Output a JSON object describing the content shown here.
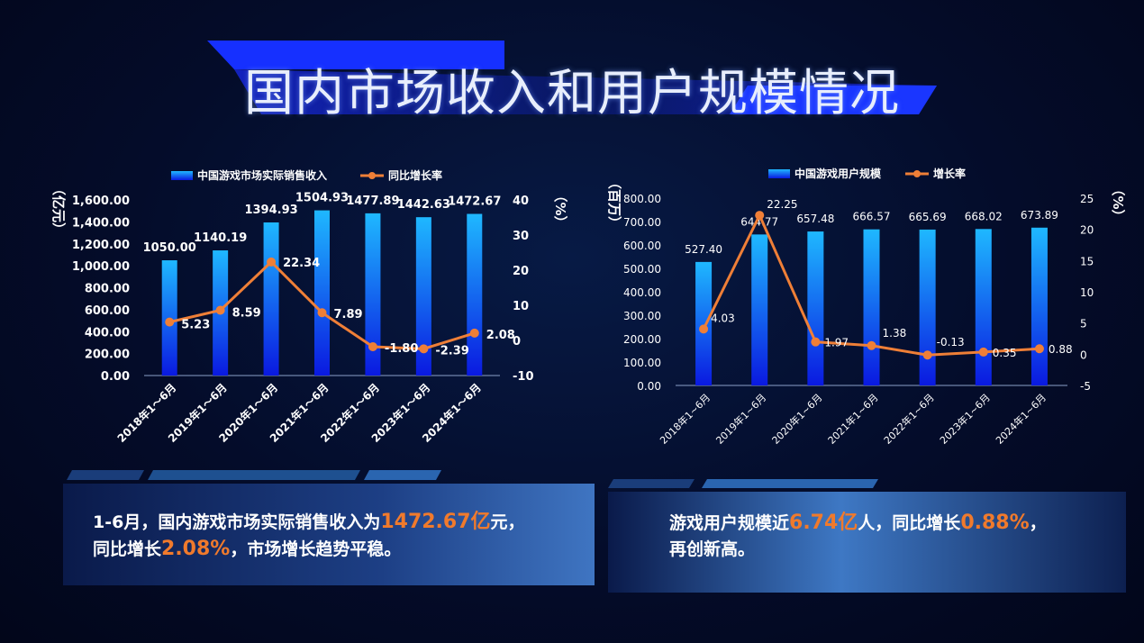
{
  "page": {
    "title": "国内市场收入和用户规模情况",
    "colors": {
      "bar_top": "#1fb8ff",
      "bar_bottom": "#0a19e0",
      "line": "#ef7f37",
      "highlight": "#f07a2c"
    }
  },
  "chart_data": [
    {
      "type": "bar",
      "categories": [
        "2018年1～6月",
        "2019年1～6月",
        "2020年1～6月",
        "2021年1～6月",
        "2022年1～6月",
        "2023年1～6月",
        "2024年1～6月"
      ],
      "series": [
        {
          "name": "中国游戏市场实际销售收入",
          "type": "bar",
          "axis": "left",
          "values": [
            1050.0,
            1140.19,
            1394.93,
            1504.93,
            1477.89,
            1442.63,
            1472.67
          ],
          "labels": [
            "1050.00",
            "1140.19",
            "1394.93",
            "1504.93",
            "1477.89",
            "1442.63",
            "1472.67"
          ]
        },
        {
          "name": "同比增长率",
          "type": "line",
          "axis": "right",
          "values": [
            5.23,
            8.59,
            22.34,
            7.89,
            -1.8,
            -2.39,
            2.08
          ],
          "labels": [
            "5.23",
            "8.59",
            "22.34",
            "7.89",
            "-1.80",
            "-2.39",
            "2.08"
          ]
        }
      ],
      "ylabel": "（亿元）",
      "y2label": "（%）",
      "ylim": [
        0,
        1600
      ],
      "y2lim": [
        -10,
        40
      ],
      "yticks": [
        "0.00",
        "200.00",
        "400.00",
        "600.00",
        "800.00",
        "1,000.00",
        "1,200.00",
        "1,400.00",
        "1,600.00"
      ],
      "y2ticks": [
        "-10",
        "0",
        "10",
        "20",
        "30",
        "40"
      ],
      "legend": "top",
      "grid": false
    },
    {
      "type": "bar",
      "categories": [
        "2018年1~6月",
        "2019年1~6月",
        "2020年1~6月",
        "2021年1~6月",
        "2022年1~6月",
        "2023年1~6月",
        "2024年1~6月"
      ],
      "series": [
        {
          "name": "中国游戏用户规模",
          "type": "bar",
          "axis": "left",
          "values": [
            527.4,
            644.77,
            657.48,
            666.57,
            665.69,
            668.02,
            673.89
          ],
          "labels": [
            "527.40",
            "644.77",
            "657.48",
            "666.57",
            "665.69",
            "668.02",
            "673.89"
          ]
        },
        {
          "name": "增长率",
          "type": "line",
          "axis": "right",
          "values": [
            4.03,
            22.25,
            1.97,
            1.38,
            -0.13,
            0.35,
            0.88
          ],
          "labels": [
            "4.03",
            "22.25",
            "1.97",
            "1.38",
            "-0.13",
            "0.35",
            "0.88"
          ]
        }
      ],
      "ylabel": "（百万）",
      "y2label": "（%）",
      "ylim": [
        0,
        800
      ],
      "y2lim": [
        -5,
        25
      ],
      "yticks": [
        "0.00",
        "100.00",
        "200.00",
        "300.00",
        "400.00",
        "500.00",
        "600.00",
        "700.00",
        "800.00"
      ],
      "y2ticks": [
        "-5",
        "0",
        "5",
        "10",
        "15",
        "20",
        "25"
      ],
      "legend": "top",
      "grid": false
    }
  ],
  "summary_left": {
    "line1_a": "1-6月，国内游戏市场实际销售收入为",
    "line1_b": "1472.67亿",
    "line1_c": "元，",
    "line2_a": "同比增长",
    "line2_b": "2.08%",
    "line2_c": "，市场增长趋势平稳。"
  },
  "summary_right": {
    "line1_a": "游戏用户规模近",
    "line1_b": "6.74亿",
    "line1_c": "人，同比增长",
    "line1_d": "0.88%",
    "line1_e": "，",
    "line2": "再创新高。"
  }
}
